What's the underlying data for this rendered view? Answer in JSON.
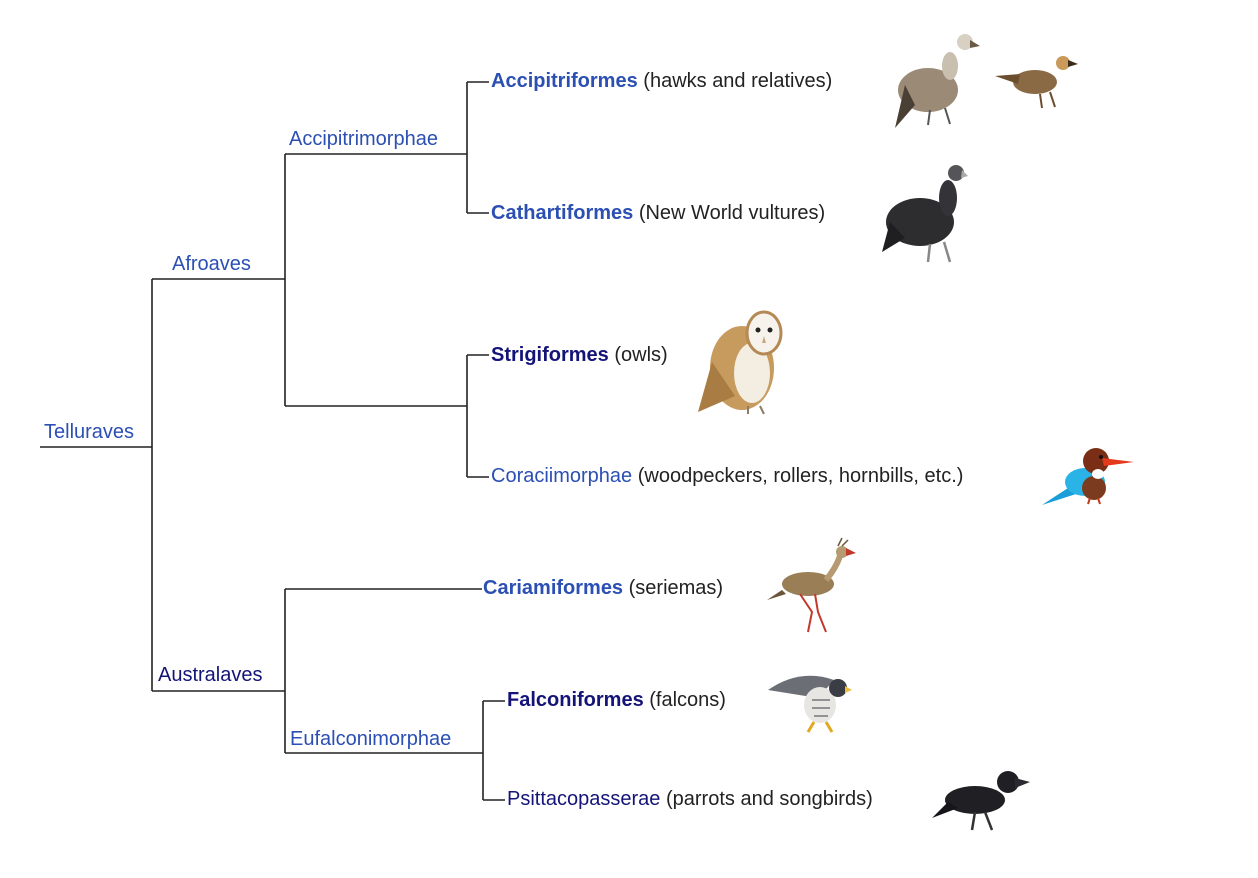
{
  "tree": {
    "root": "Telluraves",
    "clades": {
      "afroaves": "Afroaves",
      "accipitrimorphae": "Accipitrimorphae",
      "australaves": "Australaves",
      "eufalconimorphae": "Eufalconimorphae"
    },
    "leaves": [
      {
        "name": "Accipitriformes",
        "desc": "(hawks and relatives)",
        "icon": "hawk-and-vulture-icon"
      },
      {
        "name": "Cathartiformes",
        "desc": "(New World vultures)",
        "icon": "black-vulture-icon"
      },
      {
        "name": "Strigiformes",
        "desc": "(owls)",
        "icon": "barn-owl-icon"
      },
      {
        "name": "Coraciimorphae",
        "desc": "(woodpeckers, rollers, hornbills, etc.)",
        "icon": "kingfisher-icon"
      },
      {
        "name": "Cariamiformes",
        "desc": "(seriemas)",
        "icon": "seriema-icon"
      },
      {
        "name": "Falconiformes",
        "desc": "(falcons)",
        "icon": "falcon-icon"
      },
      {
        "name": "Psittacopasserae",
        "desc": "(parrots and songbirds)",
        "icon": "crow-icon"
      }
    ],
    "colors": {
      "clade_blue": "#2b4fb3",
      "clade_navy": "#141478",
      "line": "#222222"
    }
  }
}
